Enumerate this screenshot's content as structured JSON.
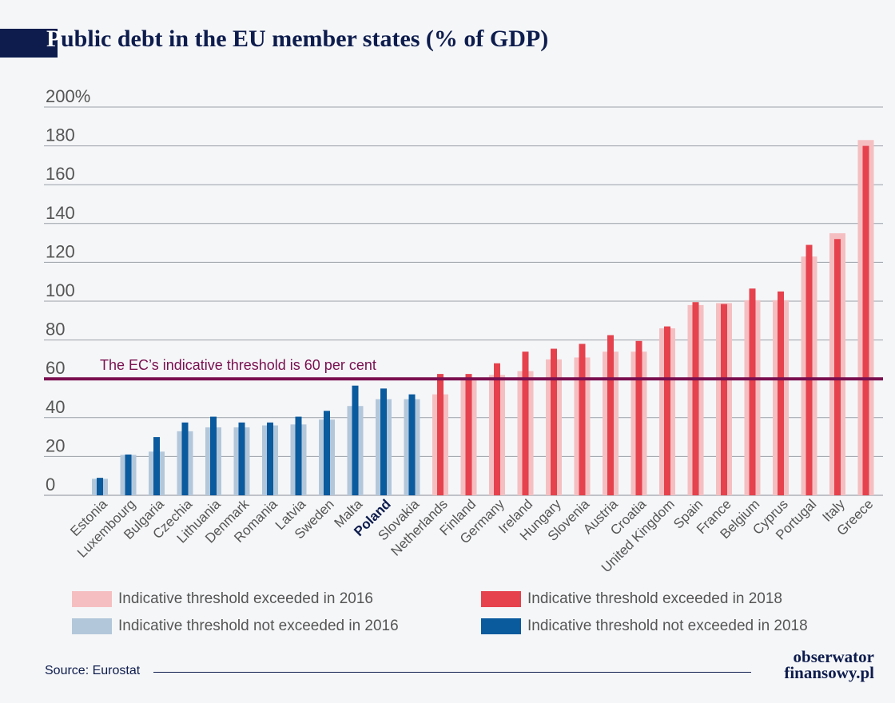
{
  "title": {
    "initial": "P",
    "rest": "ublic debt in the EU member states (% of GDP)"
  },
  "threshold_label": "The EC’s indicative threshold is 60 per cent",
  "legend": [
    {
      "label": "Indicative threshold exceeded in 2016",
      "color": "#f5bfc1"
    },
    {
      "label": "Indicative threshold exceeded in 2018",
      "color": "#e5424d"
    },
    {
      "label": "Indicative threshold not exceeded in 2016",
      "color": "#b3c7da"
    },
    {
      "label": "Indicative threshold not exceeded in 2018",
      "color": "#0a5a9e"
    }
  ],
  "source": "Source: Eurostat",
  "logo": {
    "line1": "obserwator",
    "line2": "finansowy.pl"
  },
  "colors": {
    "exceeded_2016": "#f5bfc1",
    "exceeded_2018": "#e5424d",
    "not_exceeded_2016": "#b3c7da",
    "not_exceeded_2018": "#0a5a9e",
    "threshold": "#7a1050",
    "highlight": "#0d1c4d"
  },
  "chart_data": {
    "type": "bar",
    "ylim": [
      0,
      200
    ],
    "yticks": [
      "0",
      "20",
      "40",
      "60",
      "80",
      "100",
      "120",
      "140",
      "160",
      "180",
      "200%"
    ],
    "threshold": 60,
    "highlight_category": "Poland",
    "categories": [
      "Estonia",
      "Luxembourg",
      "Bulgaria",
      "Czechia",
      "Lithuania",
      "Denmark",
      "Romania",
      "Latvia",
      "Sweden",
      "Malta",
      "Poland",
      "Slovakia",
      "Netherlands",
      "Finland",
      "Germany",
      "Ireland",
      "Hungary",
      "Slovenia",
      "Austria",
      "Croatia",
      "United Kingdom",
      "Spain",
      "France",
      "Belgium",
      "Cyprus",
      "Portugal",
      "Italy",
      "Greece"
    ],
    "series": [
      {
        "values": [
          8.5,
          20.8,
          22.5,
          33,
          35,
          35,
          36,
          36.5,
          39,
          46,
          49.5,
          49.5,
          52,
          59.5,
          62,
          64,
          70,
          71,
          74,
          74,
          86,
          98,
          99,
          100.5,
          100.5,
          123,
          135,
          183
        ]
      },
      {
        "values": [
          9,
          21,
          30,
          37.5,
          40.5,
          37.5,
          37.5,
          40.5,
          43.5,
          56.5,
          55,
          52,
          62.5,
          62.5,
          68,
          74,
          75.5,
          78,
          82.5,
          79.5,
          87,
          99.5,
          98.5,
          106.5,
          105,
          129,
          132,
          180
        ]
      }
    ]
  }
}
